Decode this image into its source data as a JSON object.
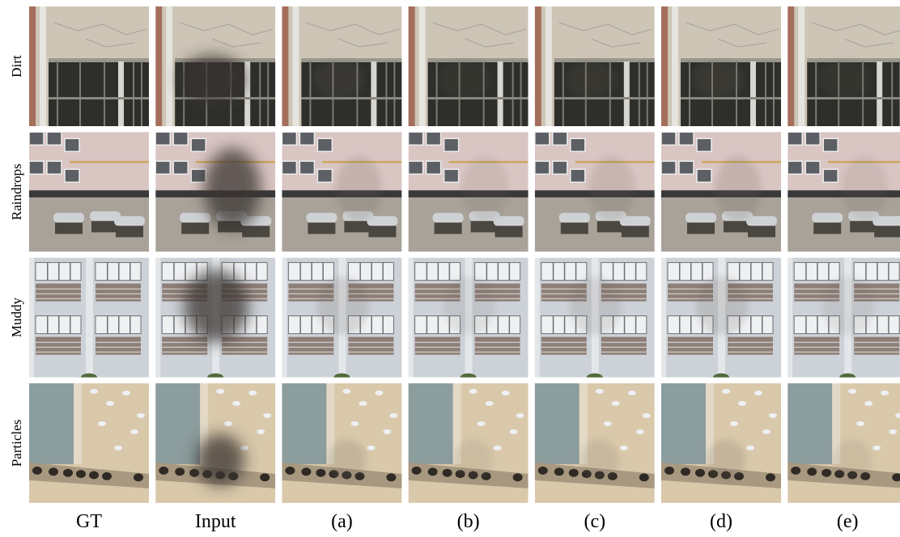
{
  "rows": [
    {
      "label": "Dirt"
    },
    {
      "label": "Raindrops"
    },
    {
      "label": "Muddy"
    },
    {
      "label": "Particles"
    }
  ],
  "columns": [
    "GT",
    "Input",
    "(a)",
    "(b)",
    "(c)",
    "(d)",
    "(e)"
  ]
}
